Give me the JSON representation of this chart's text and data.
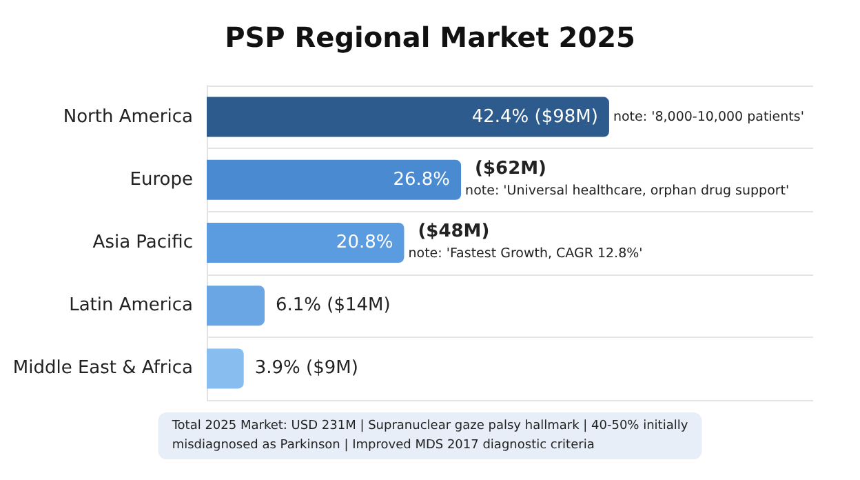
{
  "chart_data": {
    "type": "bar",
    "orientation": "horizontal",
    "title": "PSP Regional Market 2025",
    "categories": [
      "North America",
      "Europe",
      "Asia Pacific",
      "Latin America",
      "Middle East & Africa"
    ],
    "values": [
      42.4,
      26.8,
      20.8,
      6.1,
      3.9
    ],
    "colors": [
      "#2e5b8e",
      "#4a8ad0",
      "#5b9be0",
      "#6aa6e4",
      "#88bdf0"
    ],
    "value_labels": [
      "42.4% ($98M)",
      "26.8%",
      "20.8%",
      "6.1% ($14M)",
      "3.9% ($9M)"
    ],
    "annotations": [
      {
        "text": "note: '8,000-10,000 patients'",
        "x": 42.4,
        "y": "North America"
      },
      {
        "text": "($62M)",
        "x": 26.8,
        "y": "Europe"
      },
      {
        "text": "note: 'Universal healthcare, orphan drug support'",
        "x": 26.8,
        "y": "Europe"
      },
      {
        "text": "($48M)",
        "x": 20.8,
        "y": "Asia Pacific"
      },
      {
        "text": "note: 'Fastest Growth, CAGR 12.8%'",
        "x": 20.8,
        "y": "Asia Pacific"
      },
      "Total 2025 Market: USD 231M | Supranuclear gaze palsy hallmark | 40-50% initially misdiagnosed as Parkinson | Improved MDS 2017 diagnostic criteria"
    ],
    "grid": "y"
  }
}
